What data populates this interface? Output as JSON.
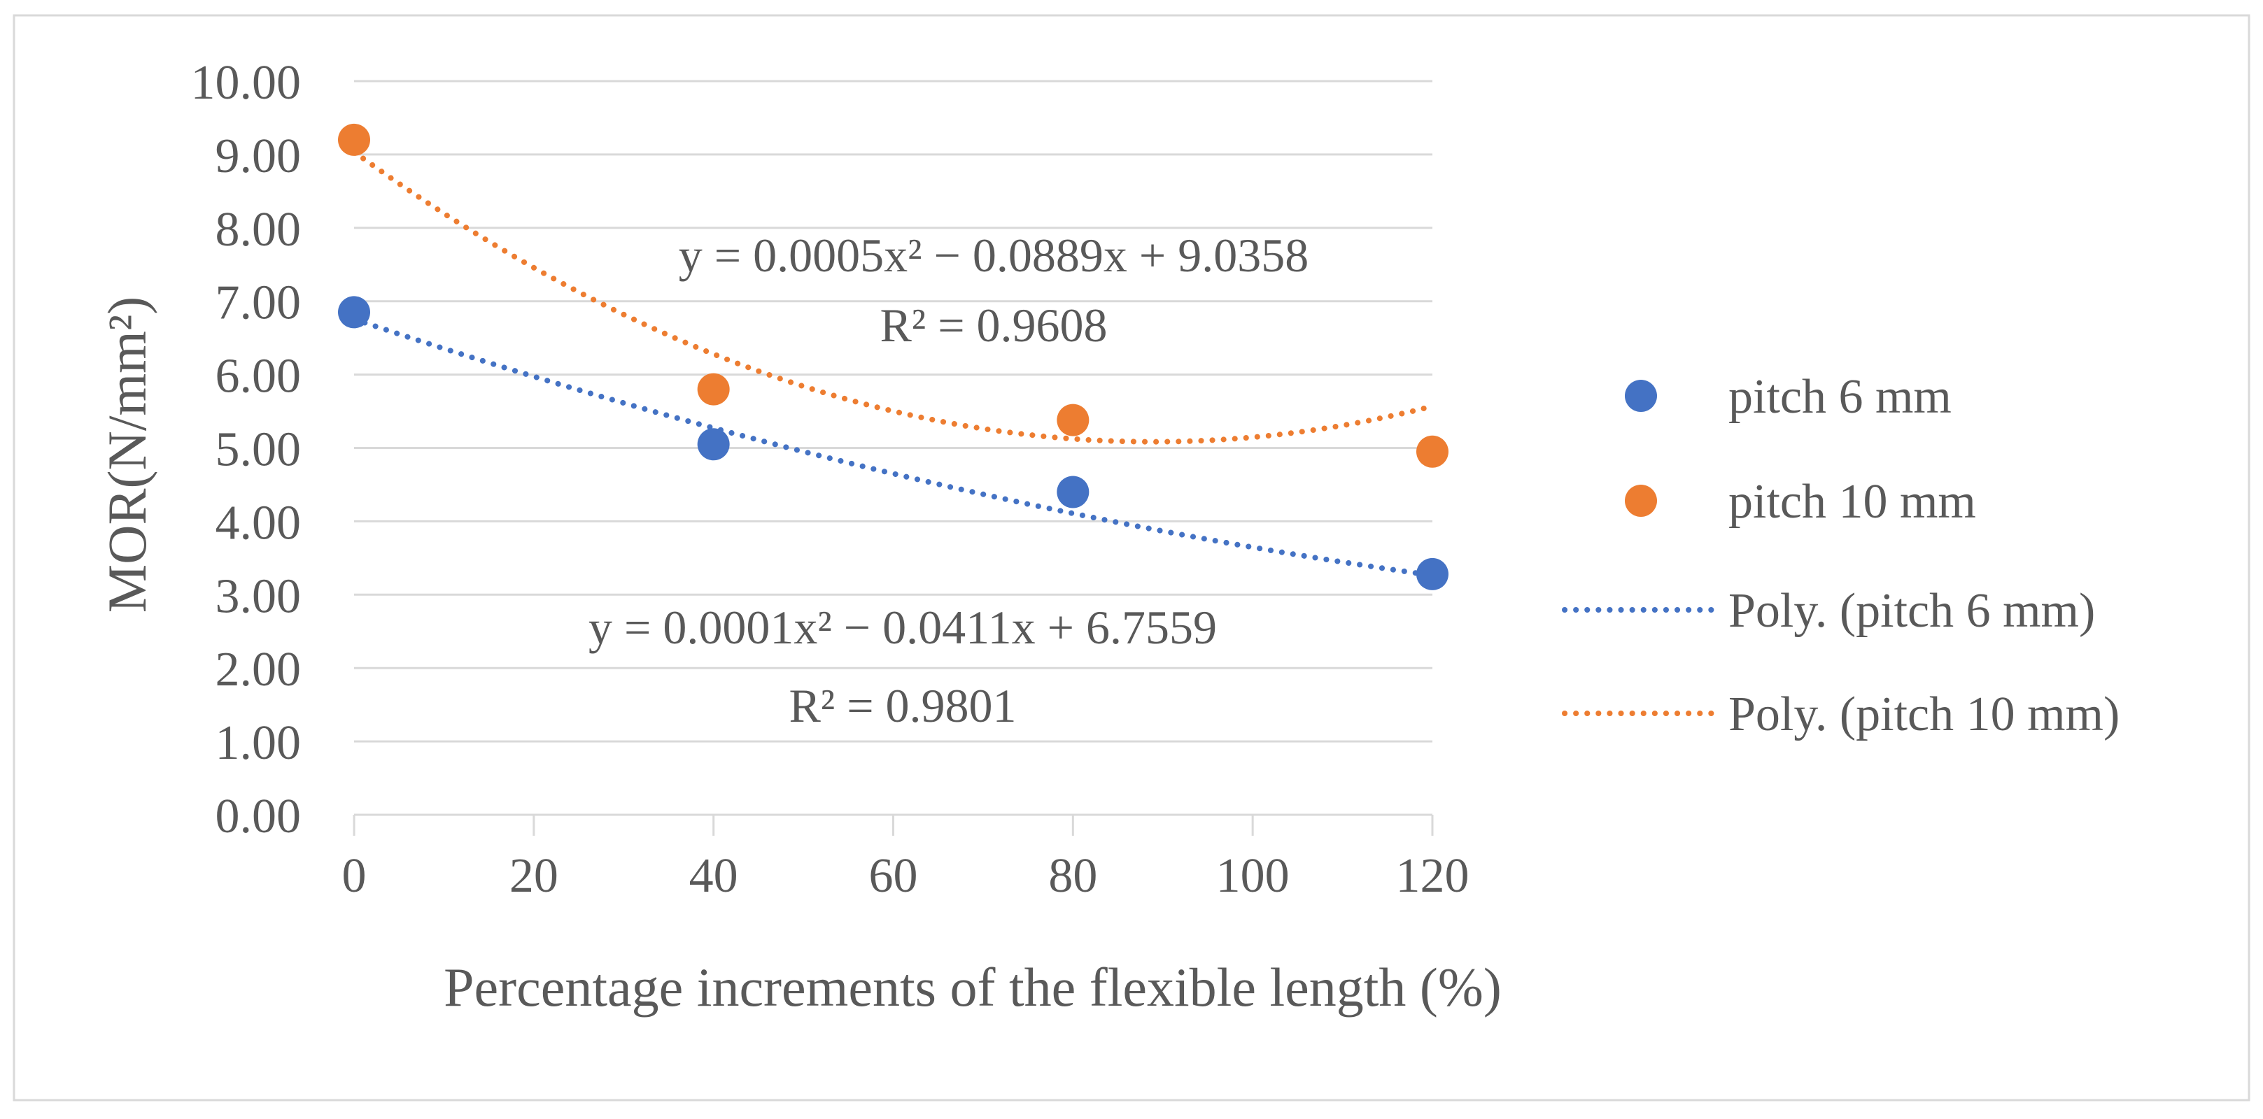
{
  "chart_data": {
    "type": "scatter",
    "title": "",
    "xlabel": "Percentage increments of the flexible length (%)",
    "ylabel": "MOR(N/mm²)",
    "xlim": [
      0,
      120
    ],
    "ylim": [
      0,
      10
    ],
    "x_ticks": [
      "0",
      "20",
      "40",
      "60",
      "80",
      "100",
      "120"
    ],
    "y_ticks": [
      "0.00",
      "1.00",
      "2.00",
      "3.00",
      "4.00",
      "5.00",
      "6.00",
      "7.00",
      "8.00",
      "9.00",
      "10.00"
    ],
    "grid": "horizontal",
    "legend_position": "right",
    "series": [
      {
        "name": "pitch 6 mm",
        "color": "#4472C4",
        "x": [
          0,
          40,
          80,
          120
        ],
        "y": [
          6.85,
          5.05,
          4.4,
          3.28
        ],
        "trendline": {
          "name": "Poly. (pitch 6 mm)",
          "coefficients": [
            0.0001,
            -0.0411,
            6.7559
          ],
          "equation": "y = 0.0001x² − 0.0411x + 6.7559",
          "r2": "R² = 0.9801"
        }
      },
      {
        "name": "pitch 10 mm",
        "color": "#ED7D31",
        "x": [
          0,
          40,
          80,
          120
        ],
        "y": [
          9.2,
          5.8,
          5.38,
          4.95
        ],
        "trendline": {
          "name": "Poly. (pitch 10 mm)",
          "coefficients": [
            0.0005,
            -0.0889,
            9.0358
          ],
          "equation": "y = 0.0005x² − 0.0889x + 9.0358",
          "r2": "R² = 0.9608"
        }
      }
    ]
  }
}
